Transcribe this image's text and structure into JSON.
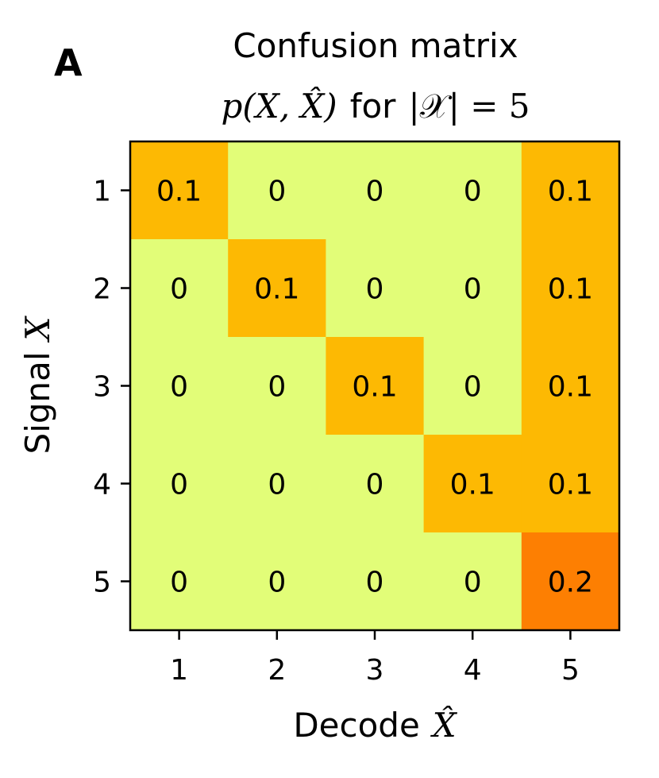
{
  "panel_letter": "A",
  "chart_data": {
    "type": "heatmap",
    "title": "Confusion matrix",
    "subtitle": {
      "math_left": "p(X, X̂)",
      "text": "for",
      "math_right": "|𝒳| = 5"
    },
    "xlabel": {
      "text": "Decode",
      "math": "X̂"
    },
    "ylabel": {
      "text": "Signal",
      "math": "X"
    },
    "x_ticks": [
      "1",
      "2",
      "3",
      "4",
      "5"
    ],
    "y_ticks": [
      "1",
      "2",
      "3",
      "4",
      "5"
    ],
    "values": [
      [
        0.1,
        0,
        0,
        0,
        0.1
      ],
      [
        0,
        0.1,
        0,
        0,
        0.1
      ],
      [
        0,
        0,
        0.1,
        0,
        0.1
      ],
      [
        0,
        0,
        0,
        0.1,
        0.1
      ],
      [
        0,
        0,
        0,
        0,
        0.2
      ]
    ],
    "labels": [
      [
        "0.1",
        "0",
        "0",
        "0",
        "0.1"
      ],
      [
        "0",
        "0.1",
        "0",
        "0",
        "0.1"
      ],
      [
        "0",
        "0",
        "0.1",
        "0",
        "0.1"
      ],
      [
        "0",
        "0",
        "0",
        "0.1",
        "0.1"
      ],
      [
        "0",
        "0",
        "0",
        "0",
        "0.2"
      ]
    ],
    "colormap": {
      "0": "#e2fd78",
      "0.1": "#fdb903",
      "0.2": "#fd7f02"
    }
  }
}
